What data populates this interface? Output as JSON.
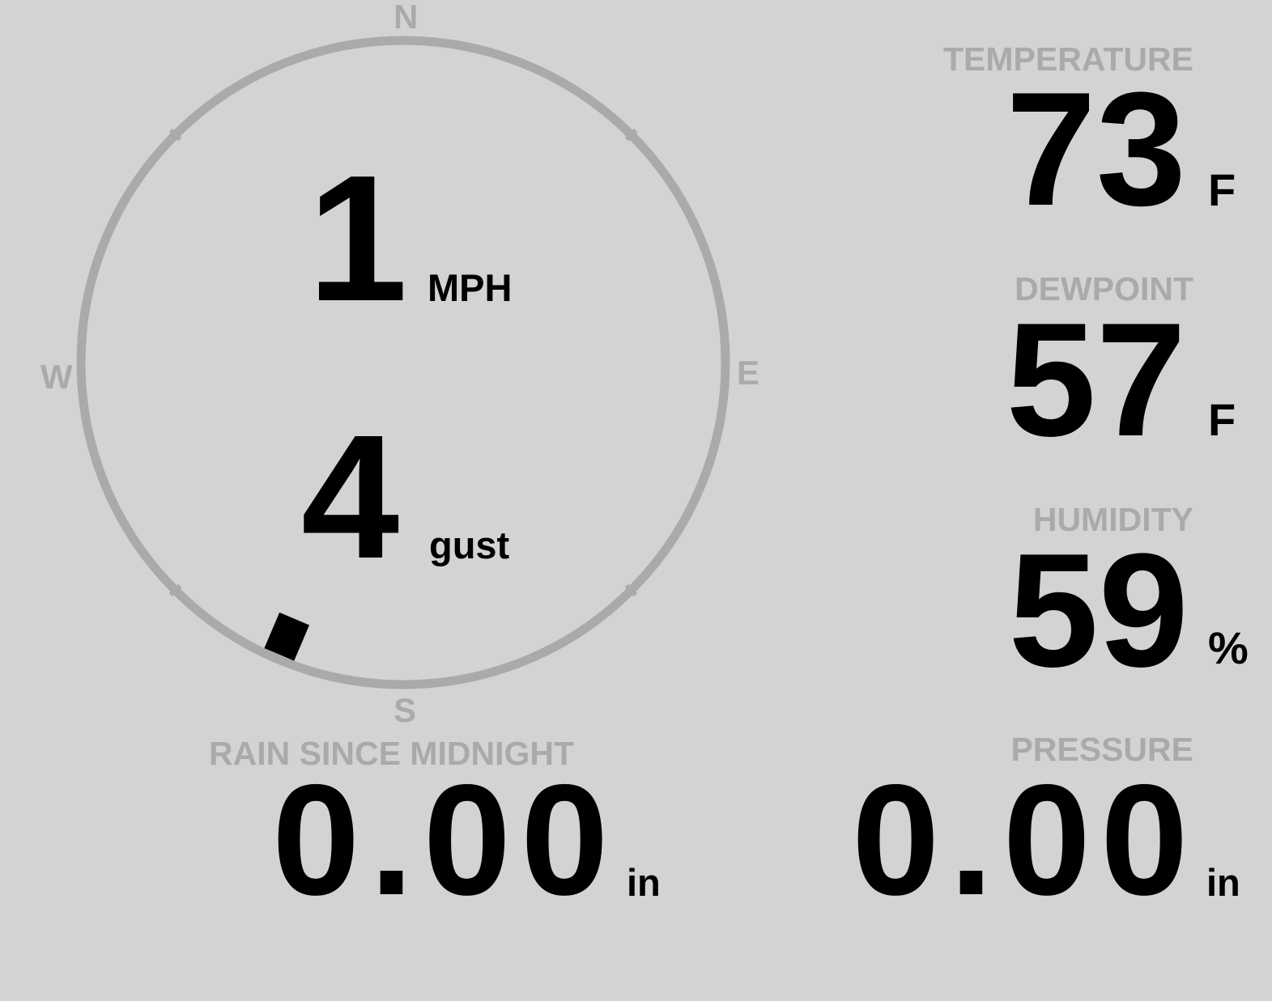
{
  "colors": {
    "background": "#d3d3d3",
    "label": "#aaaaaa",
    "value": "#000000",
    "ring": "#aaaaaa"
  },
  "wind": {
    "speed": "1",
    "speed_unit": "MPH",
    "gust": "4",
    "gust_unit": "gust",
    "direction_deg": 203,
    "compass": {
      "n": "N",
      "e": "E",
      "s": "S",
      "w": "W"
    }
  },
  "temperature": {
    "label": "TEMPERATURE",
    "value": "73",
    "unit": "F"
  },
  "dewpoint": {
    "label": "DEWPOINT",
    "value": "57",
    "unit": "F"
  },
  "humidity": {
    "label": "HUMIDITY",
    "value": "59",
    "unit": "%"
  },
  "rain": {
    "label": "RAIN SINCE MIDNIGHT",
    "value": "0.00",
    "unit": "in"
  },
  "pressure": {
    "label": "PRESSURE",
    "value": "0.00",
    "unit": "in"
  }
}
